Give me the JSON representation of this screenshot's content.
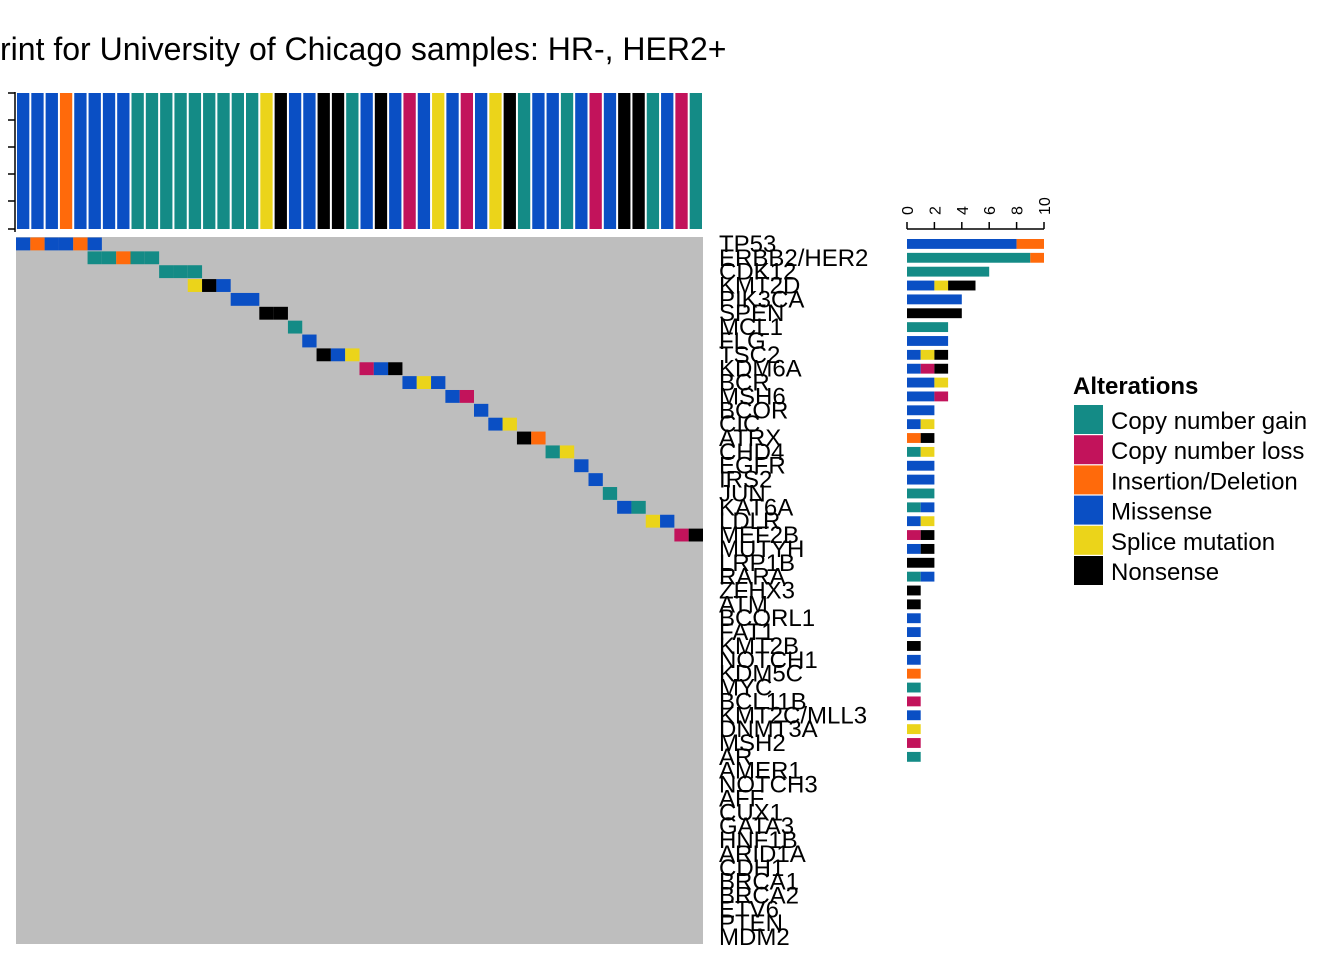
{
  "chart_data": {
    "type": "heatmap",
    "title": "rint for University of Chicago samples: HR-, HER2+",
    "alteration_colors": {
      "Copy number gain": "#148B86",
      "Copy number loss": "#C2135B",
      "Insertion/Deletion": "#FF6A0B",
      "Missense": "#0A4FC4",
      "Splice mutation": "#EBD41A",
      "Nonsense": "#000000"
    },
    "background_color": "#BEBEBE",
    "genes": [
      "TP53",
      "ERBB2/HER2",
      "CDK12",
      "KMT2D",
      "PIK3CA",
      "SPEN",
      "MCL1",
      "FLG",
      "TSC2",
      "KDM6A",
      "BCR",
      "MSH6",
      "BCOR",
      "CIC",
      "ATRX",
      "CHD4",
      "EGFR",
      "IRS2",
      "JUN",
      "KAT6A",
      "LDLR",
      "MEF2B",
      "MUTYH",
      "LRP1B",
      "RARA",
      "ZFHX3",
      "ATM",
      "BCORL1",
      "FAT1",
      "KMT2B",
      "NOTCH1",
      "KDM5C",
      "MYC",
      "BCL11B",
      "KMT2C/MLL3",
      "DNMT3A",
      "MSH2",
      "AR",
      "AMER1",
      "NOTCH3",
      "AFF",
      "CUX1",
      "GATA3",
      "HNF1B",
      "ARID1A",
      "CDH1",
      "BRCA1",
      "BRCA2",
      "ETV6",
      "PTEN",
      "MDM2"
    ],
    "n_samples": 48,
    "sample_alterations": [
      "Missense",
      "Missense",
      "Missense",
      "Insertion/Deletion",
      "Missense",
      "Missense",
      "Missense",
      "Missense",
      "Copy number gain",
      "Copy number gain",
      "Copy number gain",
      "Copy number gain",
      "Copy number gain",
      "Copy number gain",
      "Copy number gain",
      "Copy number gain",
      "Copy number gain",
      "Splice mutation",
      "Nonsense",
      "Missense",
      "Missense",
      "Nonsense",
      "Nonsense",
      "Copy number gain",
      "Missense",
      "Nonsense",
      "Missense",
      "Copy number loss",
      "Missense",
      "Splice mutation",
      "Missense",
      "Copy number loss",
      "Missense",
      "Splice mutation",
      "Nonsense",
      "Copy number gain",
      "Missense",
      "Missense",
      "Copy number gain",
      "Missense",
      "Copy number loss",
      "Missense",
      "Nonsense",
      "Nonsense",
      "Copy number gain",
      "Missense",
      "Copy number loss",
      "Copy number gain"
    ],
    "cells": [
      {
        "gene": "TP53",
        "sample": 1,
        "alteration": "Missense"
      },
      {
        "gene": "TP53",
        "sample": 2,
        "alteration": "Insertion/Deletion"
      },
      {
        "gene": "TP53",
        "sample": 3,
        "alteration": "Missense"
      },
      {
        "gene": "TP53",
        "sample": 4,
        "alteration": "Missense"
      },
      {
        "gene": "TP53",
        "sample": 5,
        "alteration": "Insertion/Deletion"
      },
      {
        "gene": "TP53",
        "sample": 6,
        "alteration": "Missense"
      },
      {
        "gene": "ERBB2/HER2",
        "sample": 6,
        "alteration": "Copy number gain"
      },
      {
        "gene": "ERBB2/HER2",
        "sample": 7,
        "alteration": "Copy number gain"
      },
      {
        "gene": "ERBB2/HER2",
        "sample": 8,
        "alteration": "Insertion/Deletion"
      },
      {
        "gene": "ERBB2/HER2",
        "sample": 9,
        "alteration": "Copy number gain"
      },
      {
        "gene": "ERBB2/HER2",
        "sample": 10,
        "alteration": "Copy number gain"
      },
      {
        "gene": "CDK12",
        "sample": 11,
        "alteration": "Copy number gain"
      },
      {
        "gene": "CDK12",
        "sample": 12,
        "alteration": "Copy number gain"
      },
      {
        "gene": "CDK12",
        "sample": 13,
        "alteration": "Copy number gain"
      },
      {
        "gene": "KMT2D",
        "sample": 13,
        "alteration": "Splice mutation"
      },
      {
        "gene": "KMT2D",
        "sample": 14,
        "alteration": "Nonsense"
      },
      {
        "gene": "KMT2D",
        "sample": 15,
        "alteration": "Missense"
      },
      {
        "gene": "PIK3CA",
        "sample": 16,
        "alteration": "Missense"
      },
      {
        "gene": "PIK3CA",
        "sample": 17,
        "alteration": "Missense"
      },
      {
        "gene": "SPEN",
        "sample": 18,
        "alteration": "Nonsense"
      },
      {
        "gene": "SPEN",
        "sample": 19,
        "alteration": "Nonsense"
      },
      {
        "gene": "MCL1",
        "sample": 20,
        "alteration": "Copy number gain"
      },
      {
        "gene": "FLG",
        "sample": 21,
        "alteration": "Missense"
      },
      {
        "gene": "TSC2",
        "sample": 22,
        "alteration": "Nonsense"
      },
      {
        "gene": "TSC2",
        "sample": 23,
        "alteration": "Missense"
      },
      {
        "gene": "TSC2",
        "sample": 24,
        "alteration": "Splice mutation"
      },
      {
        "gene": "KDM6A",
        "sample": 25,
        "alteration": "Copy number loss"
      },
      {
        "gene": "KDM6A",
        "sample": 26,
        "alteration": "Missense"
      },
      {
        "gene": "KDM6A",
        "sample": 27,
        "alteration": "Nonsense"
      },
      {
        "gene": "BCR",
        "sample": 28,
        "alteration": "Missense"
      },
      {
        "gene": "BCR",
        "sample": 29,
        "alteration": "Splice mutation"
      },
      {
        "gene": "BCR",
        "sample": 30,
        "alteration": "Missense"
      },
      {
        "gene": "MSH6",
        "sample": 31,
        "alteration": "Missense"
      },
      {
        "gene": "MSH6",
        "sample": 32,
        "alteration": "Copy number loss"
      },
      {
        "gene": "BCOR",
        "sample": 33,
        "alteration": "Missense"
      },
      {
        "gene": "CIC",
        "sample": 34,
        "alteration": "Missense"
      },
      {
        "gene": "CIC",
        "sample": 35,
        "alteration": "Splice mutation"
      },
      {
        "gene": "ATRX",
        "sample": 36,
        "alteration": "Nonsense"
      },
      {
        "gene": "ATRX",
        "sample": 37,
        "alteration": "Insertion/Deletion"
      },
      {
        "gene": "CHD4",
        "sample": 38,
        "alteration": "Copy number gain"
      },
      {
        "gene": "CHD4",
        "sample": 39,
        "alteration": "Splice mutation"
      },
      {
        "gene": "EGFR",
        "sample": 40,
        "alteration": "Missense"
      },
      {
        "gene": "IRS2",
        "sample": 41,
        "alteration": "Missense"
      },
      {
        "gene": "JUN",
        "sample": 42,
        "alteration": "Copy number gain"
      },
      {
        "gene": "KAT6A",
        "sample": 43,
        "alteration": "Missense"
      },
      {
        "gene": "KAT6A",
        "sample": 44,
        "alteration": "Copy number gain"
      },
      {
        "gene": "LDLR",
        "sample": 45,
        "alteration": "Splice mutation"
      },
      {
        "gene": "LDLR",
        "sample": 46,
        "alteration": "Missense"
      },
      {
        "gene": "MEF2B",
        "sample": 47,
        "alteration": "Copy number loss"
      },
      {
        "gene": "MEF2B",
        "sample": 48,
        "alteration": "Nonsense"
      }
    ],
    "gene_counts": {
      "axis_ticks": [
        0,
        2,
        4,
        6,
        8,
        10
      ],
      "xlim": [
        0,
        10
      ],
      "rows": [
        {
          "gene": "TP53",
          "segments": [
            {
              "alteration": "Missense",
              "count": 8
            },
            {
              "alteration": "Insertion/Deletion",
              "count": 2
            }
          ]
        },
        {
          "gene": "ERBB2/HER2",
          "segments": [
            {
              "alteration": "Copy number gain",
              "count": 9
            },
            {
              "alteration": "Insertion/Deletion",
              "count": 1
            }
          ]
        },
        {
          "gene": "CDK12",
          "segments": [
            {
              "alteration": "Copy number gain",
              "count": 6
            }
          ]
        },
        {
          "gene": "KMT2D",
          "segments": [
            {
              "alteration": "Missense",
              "count": 2
            },
            {
              "alteration": "Splice mutation",
              "count": 1
            },
            {
              "alteration": "Nonsense",
              "count": 2
            }
          ]
        },
        {
          "gene": "PIK3CA",
          "segments": [
            {
              "alteration": "Missense",
              "count": 4
            }
          ]
        },
        {
          "gene": "SPEN",
          "segments": [
            {
              "alteration": "Nonsense",
              "count": 4
            }
          ]
        },
        {
          "gene": "MCL1",
          "segments": [
            {
              "alteration": "Copy number gain",
              "count": 3
            }
          ]
        },
        {
          "gene": "FLG",
          "segments": [
            {
              "alteration": "Missense",
              "count": 3
            }
          ]
        },
        {
          "gene": "TSC2",
          "segments": [
            {
              "alteration": "Missense",
              "count": 1
            },
            {
              "alteration": "Splice mutation",
              "count": 1
            },
            {
              "alteration": "Nonsense",
              "count": 1
            }
          ]
        },
        {
          "gene": "KDM6A",
          "segments": [
            {
              "alteration": "Missense",
              "count": 1
            },
            {
              "alteration": "Copy number loss",
              "count": 1
            },
            {
              "alteration": "Nonsense",
              "count": 1
            }
          ]
        },
        {
          "gene": "BCR",
          "segments": [
            {
              "alteration": "Missense",
              "count": 2
            },
            {
              "alteration": "Splice mutation",
              "count": 1
            }
          ]
        },
        {
          "gene": "MSH6",
          "segments": [
            {
              "alteration": "Missense",
              "count": 2
            },
            {
              "alteration": "Copy number loss",
              "count": 1
            }
          ]
        },
        {
          "gene": "BCOR",
          "segments": [
            {
              "alteration": "Missense",
              "count": 2
            }
          ]
        },
        {
          "gene": "CIC",
          "segments": [
            {
              "alteration": "Missense",
              "count": 1
            },
            {
              "alteration": "Splice mutation",
              "count": 1
            }
          ]
        },
        {
          "gene": "ATRX",
          "segments": [
            {
              "alteration": "Insertion/Deletion",
              "count": 1
            },
            {
              "alteration": "Nonsense",
              "count": 1
            }
          ]
        },
        {
          "gene": "CHD4",
          "segments": [
            {
              "alteration": "Copy number gain",
              "count": 1
            },
            {
              "alteration": "Splice mutation",
              "count": 1
            }
          ]
        },
        {
          "gene": "EGFR",
          "segments": [
            {
              "alteration": "Missense",
              "count": 2
            }
          ]
        },
        {
          "gene": "IRS2",
          "segments": [
            {
              "alteration": "Missense",
              "count": 2
            }
          ]
        },
        {
          "gene": "JUN",
          "segments": [
            {
              "alteration": "Copy number gain",
              "count": 2
            }
          ]
        },
        {
          "gene": "KAT6A",
          "segments": [
            {
              "alteration": "Copy number gain",
              "count": 1
            },
            {
              "alteration": "Missense",
              "count": 1
            }
          ]
        },
        {
          "gene": "LDLR",
          "segments": [
            {
              "alteration": "Missense",
              "count": 1
            },
            {
              "alteration": "Splice mutation",
              "count": 1
            }
          ]
        },
        {
          "gene": "MEF2B",
          "segments": [
            {
              "alteration": "Copy number loss",
              "count": 1
            },
            {
              "alteration": "Nonsense",
              "count": 1
            }
          ]
        },
        {
          "gene": "MUTYH",
          "segments": [
            {
              "alteration": "Missense",
              "count": 1
            },
            {
              "alteration": "Nonsense",
              "count": 1
            }
          ]
        },
        {
          "gene": "LRP1B",
          "segments": [
            {
              "alteration": "Nonsense",
              "count": 2
            }
          ]
        },
        {
          "gene": "RARA",
          "segments": [
            {
              "alteration": "Copy number gain",
              "count": 1
            },
            {
              "alteration": "Missense",
              "count": 1
            }
          ]
        },
        {
          "gene": "ZFHX3",
          "segments": [
            {
              "alteration": "Nonsense",
              "count": 1
            }
          ]
        },
        {
          "gene": "ATM",
          "segments": [
            {
              "alteration": "Nonsense",
              "count": 1
            }
          ]
        },
        {
          "gene": "BCORL1",
          "segments": [
            {
              "alteration": "Missense",
              "count": 1
            }
          ]
        },
        {
          "gene": "FAT1",
          "segments": [
            {
              "alteration": "Missense",
              "count": 1
            }
          ]
        },
        {
          "gene": "KMT2B",
          "segments": [
            {
              "alteration": "Nonsense",
              "count": 1
            }
          ]
        },
        {
          "gene": "NOTCH1",
          "segments": [
            {
              "alteration": "Missense",
              "count": 1
            }
          ]
        },
        {
          "gene": "KDM5C",
          "segments": [
            {
              "alteration": "Insertion/Deletion",
              "count": 1
            }
          ]
        },
        {
          "gene": "MYC",
          "segments": [
            {
              "alteration": "Copy number gain",
              "count": 1
            }
          ]
        },
        {
          "gene": "BCL11B",
          "segments": [
            {
              "alteration": "Copy number loss",
              "count": 1
            }
          ]
        },
        {
          "gene": "KMT2C/MLL3",
          "segments": [
            {
              "alteration": "Missense",
              "count": 1
            }
          ]
        },
        {
          "gene": "DNMT3A",
          "segments": [
            {
              "alteration": "Splice mutation",
              "count": 1
            }
          ]
        },
        {
          "gene": "MSH2",
          "segments": [
            {
              "alteration": "Copy number loss",
              "count": 1
            }
          ]
        },
        {
          "gene": "AR",
          "segments": [
            {
              "alteration": "Copy number gain",
              "count": 1
            }
          ]
        }
      ]
    },
    "legend": {
      "title": "Alterations",
      "position": "right",
      "items": [
        "Copy number gain",
        "Copy number loss",
        "Insertion/Deletion",
        "Missense",
        "Splice mutation",
        "Nonsense"
      ]
    }
  }
}
